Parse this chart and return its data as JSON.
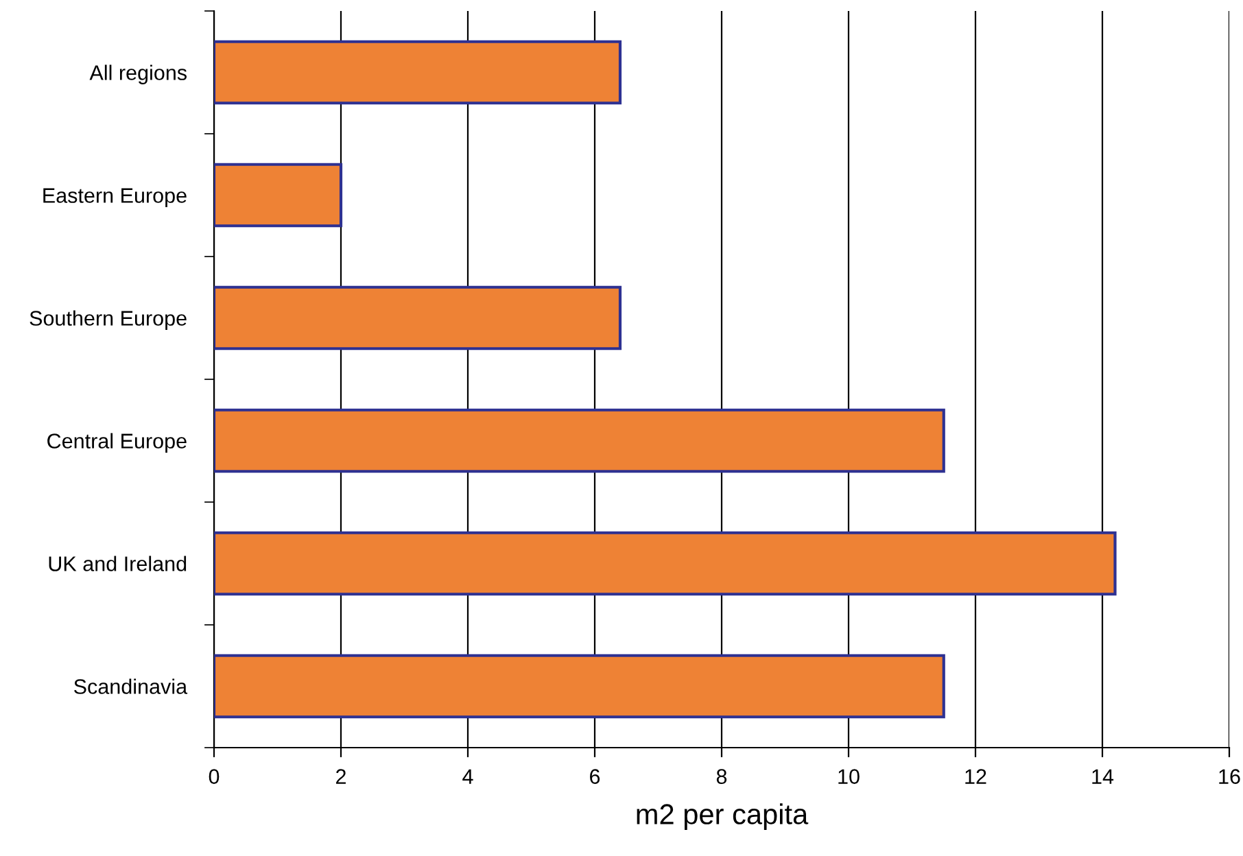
{
  "chart_data": {
    "type": "bar",
    "orientation": "horizontal",
    "xlabel": "m2 per capita",
    "categories": [
      "All regions",
      "Eastern Europe",
      "Southern Europe",
      "Central Europe",
      "UK and Ireland",
      "Scandinavia"
    ],
    "values": [
      6.4,
      2.0,
      6.4,
      11.5,
      14.2,
      11.5
    ],
    "color": "#ee8235",
    "xlim": [
      0,
      16
    ],
    "xticks": [
      0,
      2,
      4,
      6,
      8,
      10,
      12,
      14,
      16
    ],
    "grid": "x",
    "legend": false
  }
}
